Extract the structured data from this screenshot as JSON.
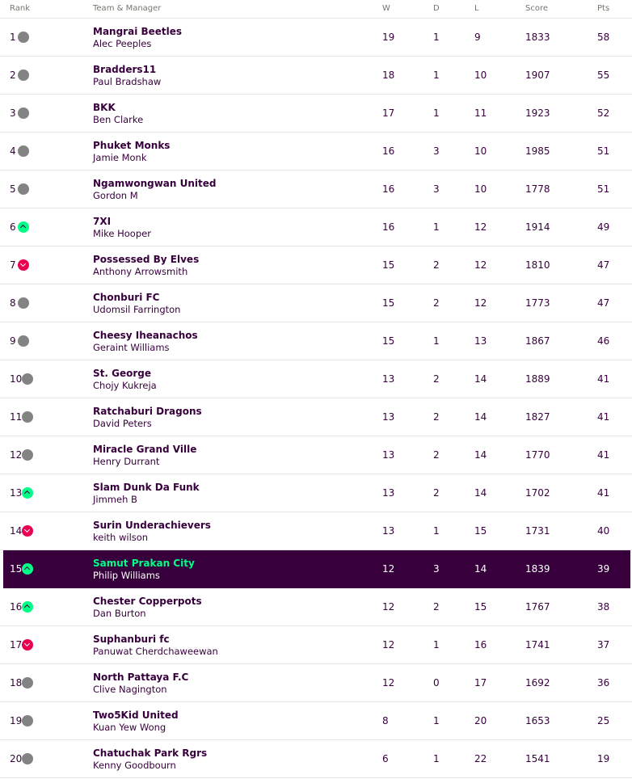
{
  "headers": {
    "rank": "Rank",
    "team": "Team & Manager",
    "w": "W",
    "d": "D",
    "l": "L",
    "score": "Score",
    "pts": "Pts"
  },
  "rows": [
    {
      "rank": "1",
      "move": "same",
      "team": "Mangrai Beetles",
      "manager": "Alec Peeples",
      "w": "19",
      "d": "1",
      "l": "9",
      "score": "1833",
      "pts": "58"
    },
    {
      "rank": "2",
      "move": "same",
      "team": "Bradders11",
      "manager": "Paul Bradshaw",
      "w": "18",
      "d": "1",
      "l": "10",
      "score": "1907",
      "pts": "55"
    },
    {
      "rank": "3",
      "move": "same",
      "team": "BKK",
      "manager": "Ben Clarke",
      "w": "17",
      "d": "1",
      "l": "11",
      "score": "1923",
      "pts": "52"
    },
    {
      "rank": "4",
      "move": "same",
      "team": "Phuket Monks",
      "manager": "Jamie Monk",
      "w": "16",
      "d": "3",
      "l": "10",
      "score": "1985",
      "pts": "51"
    },
    {
      "rank": "5",
      "move": "same",
      "team": "Ngamwongwan United",
      "manager": "Gordon M",
      "w": "16",
      "d": "3",
      "l": "10",
      "score": "1778",
      "pts": "51"
    },
    {
      "rank": "6",
      "move": "up",
      "team": "7XI",
      "manager": "Mike Hooper",
      "w": "16",
      "d": "1",
      "l": "12",
      "score": "1914",
      "pts": "49"
    },
    {
      "rank": "7",
      "move": "down",
      "team": "Possessed By Elves",
      "manager": "Anthony Arrowsmith",
      "w": "15",
      "d": "2",
      "l": "12",
      "score": "1810",
      "pts": "47"
    },
    {
      "rank": "8",
      "move": "same",
      "team": "Chonburi FC",
      "manager": "Udomsil Farrington",
      "w": "15",
      "d": "2",
      "l": "12",
      "score": "1773",
      "pts": "47"
    },
    {
      "rank": "9",
      "move": "same",
      "team": "Cheesy Iheanachos",
      "manager": "Geraint Williams",
      "w": "15",
      "d": "1",
      "l": "13",
      "score": "1867",
      "pts": "46"
    },
    {
      "rank": "10",
      "move": "same",
      "team": "St. George",
      "manager": "Chojy Kukreja",
      "w": "13",
      "d": "2",
      "l": "14",
      "score": "1889",
      "pts": "41"
    },
    {
      "rank": "11",
      "move": "same",
      "team": "Ratchaburi Dragons",
      "manager": "David Peters",
      "w": "13",
      "d": "2",
      "l": "14",
      "score": "1827",
      "pts": "41"
    },
    {
      "rank": "12",
      "move": "same",
      "team": "Miracle Grand Ville",
      "manager": "Henry Durrant",
      "w": "13",
      "d": "2",
      "l": "14",
      "score": "1770",
      "pts": "41"
    },
    {
      "rank": "13",
      "move": "up",
      "team": "Slam Dunk Da Funk",
      "manager": "Jimmeh B",
      "w": "13",
      "d": "2",
      "l": "14",
      "score": "1702",
      "pts": "41"
    },
    {
      "rank": "14",
      "move": "down",
      "team": "Surin Underachievers",
      "manager": "keith wilson",
      "w": "13",
      "d": "1",
      "l": "15",
      "score": "1731",
      "pts": "40"
    },
    {
      "rank": "15",
      "move": "up",
      "team": "Samut Prakan City",
      "manager": "Philip Williams",
      "w": "12",
      "d": "3",
      "l": "14",
      "score": "1839",
      "pts": "39",
      "highlight": true
    },
    {
      "rank": "16",
      "move": "up",
      "team": "Chester Copperpots",
      "manager": "Dan Burton",
      "w": "12",
      "d": "2",
      "l": "15",
      "score": "1767",
      "pts": "38"
    },
    {
      "rank": "17",
      "move": "down",
      "team": "Suphanburi fc",
      "manager": "Panuwat Cherdchaweewan",
      "w": "12",
      "d": "1",
      "l": "16",
      "score": "1741",
      "pts": "37"
    },
    {
      "rank": "18",
      "move": "same",
      "team": "North Pattaya F.C",
      "manager": "Clive Nagington",
      "w": "12",
      "d": "0",
      "l": "17",
      "score": "1692",
      "pts": "36"
    },
    {
      "rank": "19",
      "move": "same",
      "team": "Two5Kid United",
      "manager": "Kuan Yew Wong",
      "w": "8",
      "d": "1",
      "l": "20",
      "score": "1653",
      "pts": "25"
    },
    {
      "rank": "20",
      "move": "same",
      "team": "Chatuchak Park Rgrs",
      "manager": "Kenny Goodbourn",
      "w": "6",
      "d": "1",
      "l": "22",
      "score": "1541",
      "pts": "19"
    }
  ]
}
